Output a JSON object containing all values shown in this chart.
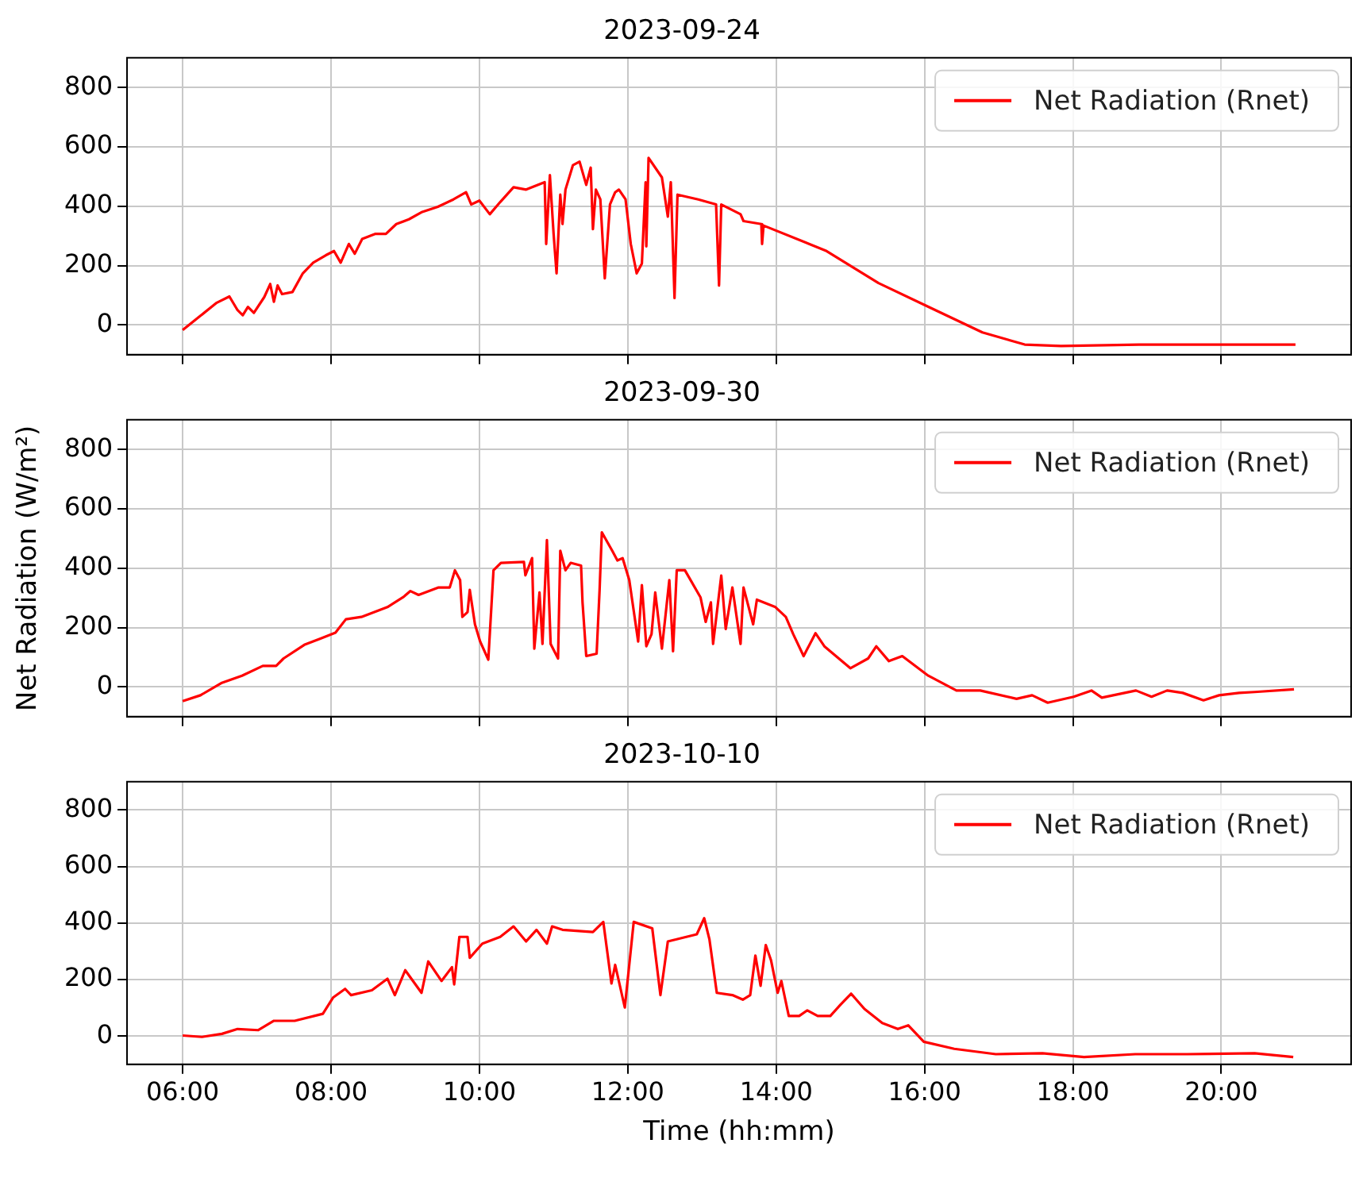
{
  "chart_data": [
    {
      "type": "line",
      "title": "2023-09-24",
      "xlim": [
        5.25,
        21.75
      ],
      "ylim": [
        -100,
        900
      ],
      "yticks": [
        0,
        200,
        400,
        600,
        800
      ],
      "xticks": [
        {
          "value": 6,
          "label": null
        },
        {
          "value": 8,
          "label": null
        },
        {
          "value": 10,
          "label": null
        },
        {
          "value": 12,
          "label": null
        },
        {
          "value": 14,
          "label": null
        },
        {
          "value": 16,
          "label": null
        },
        {
          "value": 18,
          "label": null
        },
        {
          "value": 20,
          "label": null
        }
      ],
      "tick_labels": "y",
      "grid": true,
      "legend": "top right",
      "marker": "none",
      "line_style": "solid",
      "x": [
        6.0,
        6.21,
        6.46,
        6.63,
        6.74,
        6.81,
        6.88,
        6.96,
        7.1,
        7.18,
        7.23,
        7.28,
        7.34,
        7.48,
        7.62,
        7.76,
        7.93,
        8.04,
        8.13,
        8.24,
        8.32,
        8.42,
        8.6,
        8.74,
        8.88,
        9.05,
        9.23,
        9.44,
        9.65,
        9.82,
        9.89,
        10.0,
        10.14,
        10.28,
        10.46,
        10.63,
        10.88,
        10.9,
        10.95,
        11.0,
        11.04,
        11.09,
        11.12,
        11.16,
        11.26,
        11.35,
        11.44,
        11.5,
        11.53,
        11.57,
        11.63,
        11.69,
        11.76,
        11.83,
        11.88,
        11.97,
        12.04,
        12.12,
        12.19,
        12.24,
        12.25,
        12.28,
        12.46,
        12.54,
        12.58,
        12.63,
        12.67,
        12.95,
        13.19,
        13.23,
        13.26,
        13.52,
        13.56,
        13.8,
        13.81,
        13.83,
        14.68,
        15.38,
        16.08,
        16.78,
        17.35,
        17.84,
        18.89,
        21.0
      ],
      "series": [
        {
          "name": "Net Radiation (Rnet)",
          "color": "#ff0000",
          "values": [
            -17,
            25,
            75,
            96,
            50,
            33,
            61,
            41,
            94,
            138,
            78,
            133,
            104,
            111,
            174,
            210,
            235,
            249,
            210,
            273,
            240,
            290,
            307,
            307,
            340,
            356,
            381,
            398,
            423,
            447,
            406,
            419,
            373,
            414,
            464,
            456,
            481,
            273,
            505,
            307,
            174,
            439,
            340,
            456,
            538,
            550,
            472,
            530,
            323,
            456,
            423,
            157,
            406,
            447,
            456,
            423,
            273,
            174,
            207,
            481,
            265,
            563,
            497,
            365,
            481,
            91,
            439,
            423,
            406,
            133,
            406,
            373,
            350,
            340,
            273,
            335,
            249,
            141,
            58,
            -25,
            -66,
            -71,
            -66,
            -66
          ]
        }
      ]
    },
    {
      "type": "line",
      "title": "2023-09-30",
      "ylabel": "Net Radiation (W/m²)",
      "xlim": [
        5.25,
        21.75
      ],
      "ylim": [
        -100,
        900
      ],
      "yticks": [
        0,
        200,
        400,
        600,
        800
      ],
      "xticks": [
        {
          "value": 6,
          "label": null
        },
        {
          "value": 8,
          "label": null
        },
        {
          "value": 10,
          "label": null
        },
        {
          "value": 12,
          "label": null
        },
        {
          "value": 14,
          "label": null
        },
        {
          "value": 16,
          "label": null
        },
        {
          "value": 18,
          "label": null
        },
        {
          "value": 20,
          "label": null
        }
      ],
      "tick_labels": "y",
      "grid": true,
      "legend": "top right",
      "marker": "none",
      "line_style": "solid",
      "x": [
        6.0,
        6.24,
        6.52,
        6.8,
        7.08,
        7.26,
        7.36,
        7.64,
        7.85,
        8.06,
        8.2,
        8.41,
        8.76,
        8.97,
        9.07,
        9.18,
        9.45,
        9.6,
        9.67,
        9.74,
        9.77,
        9.84,
        9.87,
        9.94,
        10.01,
        10.12,
        10.19,
        10.29,
        10.6,
        10.62,
        10.71,
        10.74,
        10.81,
        10.85,
        10.91,
        10.96,
        11.06,
        11.09,
        11.16,
        11.23,
        11.37,
        11.39,
        11.44,
        11.58,
        11.62,
        11.65,
        11.79,
        11.86,
        11.93,
        12.02,
        12.14,
        12.19,
        12.25,
        12.32,
        12.37,
        12.46,
        12.56,
        12.61,
        12.66,
        12.77,
        12.98,
        13.05,
        13.12,
        13.15,
        13.26,
        13.32,
        13.41,
        13.52,
        13.56,
        13.69,
        13.74,
        13.99,
        14.13,
        14.23,
        14.37,
        14.53,
        14.65,
        15.0,
        15.24,
        15.35,
        15.52,
        15.7,
        16.05,
        16.43,
        16.75,
        17.24,
        17.45,
        17.66,
        18.01,
        18.25,
        18.39,
        18.85,
        19.06,
        19.27,
        19.48,
        19.76,
        19.97,
        20.24,
        20.45,
        20.98
      ],
      "series": [
        {
          "name": "Net Radiation (Rnet)",
          "color": "#ff0000",
          "values": [
            -48,
            -28,
            13,
            38,
            71,
            71,
            96,
            142,
            162,
            183,
            228,
            236,
            269,
            302,
            323,
            310,
            335,
            335,
            393,
            360,
            236,
            252,
            327,
            211,
            153,
            92,
            393,
            418,
            421,
            376,
            434,
            129,
            318,
            145,
            495,
            145,
            96,
            459,
            393,
            418,
            409,
            285,
            104,
            112,
            327,
            521,
            459,
            426,
            434,
            360,
            153,
            343,
            137,
            178,
            318,
            129,
            360,
            120,
            393,
            393,
            302,
            219,
            285,
            145,
            375,
            195,
            335,
            145,
            335,
            211,
            294,
            269,
            236,
            178,
            104,
            181,
            137,
            63,
            96,
            137,
            87,
            104,
            38,
            -12,
            -12,
            -40,
            -28,
            -53,
            -33,
            -12,
            -36,
            -12,
            -33,
            -12,
            -20,
            -45,
            -28,
            -20,
            -17,
            -8
          ]
        }
      ]
    },
    {
      "type": "line",
      "title": "2023-10-10",
      "xlabel": "Time (hh:mm)",
      "xlim": [
        5.25,
        21.75
      ],
      "ylim": [
        -100,
        900
      ],
      "yticks": [
        0,
        200,
        400,
        600,
        800
      ],
      "xticks": [
        {
          "value": 6,
          "label": "06:00"
        },
        {
          "value": 8,
          "label": "08:00"
        },
        {
          "value": 10,
          "label": "10:00"
        },
        {
          "value": 12,
          "label": "12:00"
        },
        {
          "value": 14,
          "label": "14:00"
        },
        {
          "value": 16,
          "label": "16:00"
        },
        {
          "value": 18,
          "label": "18:00"
        },
        {
          "value": 20,
          "label": "20:00"
        }
      ],
      "grid": true,
      "legend": "top right",
      "marker": "none",
      "line_style": "solid",
      "x": [
        6.0,
        6.26,
        6.53,
        6.74,
        7.02,
        7.23,
        7.51,
        7.89,
        8.03,
        8.19,
        8.27,
        8.55,
        8.76,
        8.86,
        9.0,
        9.22,
        9.31,
        9.49,
        9.63,
        9.66,
        9.73,
        9.84,
        9.87,
        10.04,
        10.28,
        10.46,
        10.63,
        10.77,
        10.91,
        10.98,
        11.12,
        11.53,
        11.67,
        11.78,
        11.83,
        11.96,
        12.08,
        12.33,
        12.44,
        12.54,
        12.93,
        13.03,
        13.1,
        13.2,
        13.41,
        13.55,
        13.65,
        13.72,
        13.79,
        13.86,
        13.93,
        14.02,
        14.07,
        14.17,
        14.31,
        14.42,
        14.56,
        14.73,
        14.87,
        15.01,
        15.19,
        15.43,
        15.64,
        15.78,
        15.99,
        16.4,
        16.96,
        17.59,
        18.15,
        18.84,
        19.54,
        20.45,
        20.97
      ],
      "series": [
        {
          "name": "Net Radiation (Rnet)",
          "color": "#ff0000",
          "values": [
            2,
            -3,
            8,
            25,
            21,
            54,
            54,
            79,
            137,
            167,
            145,
            162,
            203,
            145,
            233,
            153,
            264,
            195,
            244,
            183,
            351,
            351,
            277,
            327,
            351,
            388,
            335,
            376,
            327,
            388,
            376,
            368,
            404,
            186,
            252,
            101,
            404,
            381,
            145,
            335,
            360,
            417,
            343,
            153,
            145,
            129,
            145,
            285,
            178,
            322,
            269,
            153,
            195,
            71,
            71,
            91,
            71,
            71,
            112,
            150,
            96,
            46,
            25,
            38,
            -20,
            -45,
            -64,
            -61,
            -74,
            -64,
            -64,
            -61,
            -74
          ]
        }
      ]
    }
  ]
}
